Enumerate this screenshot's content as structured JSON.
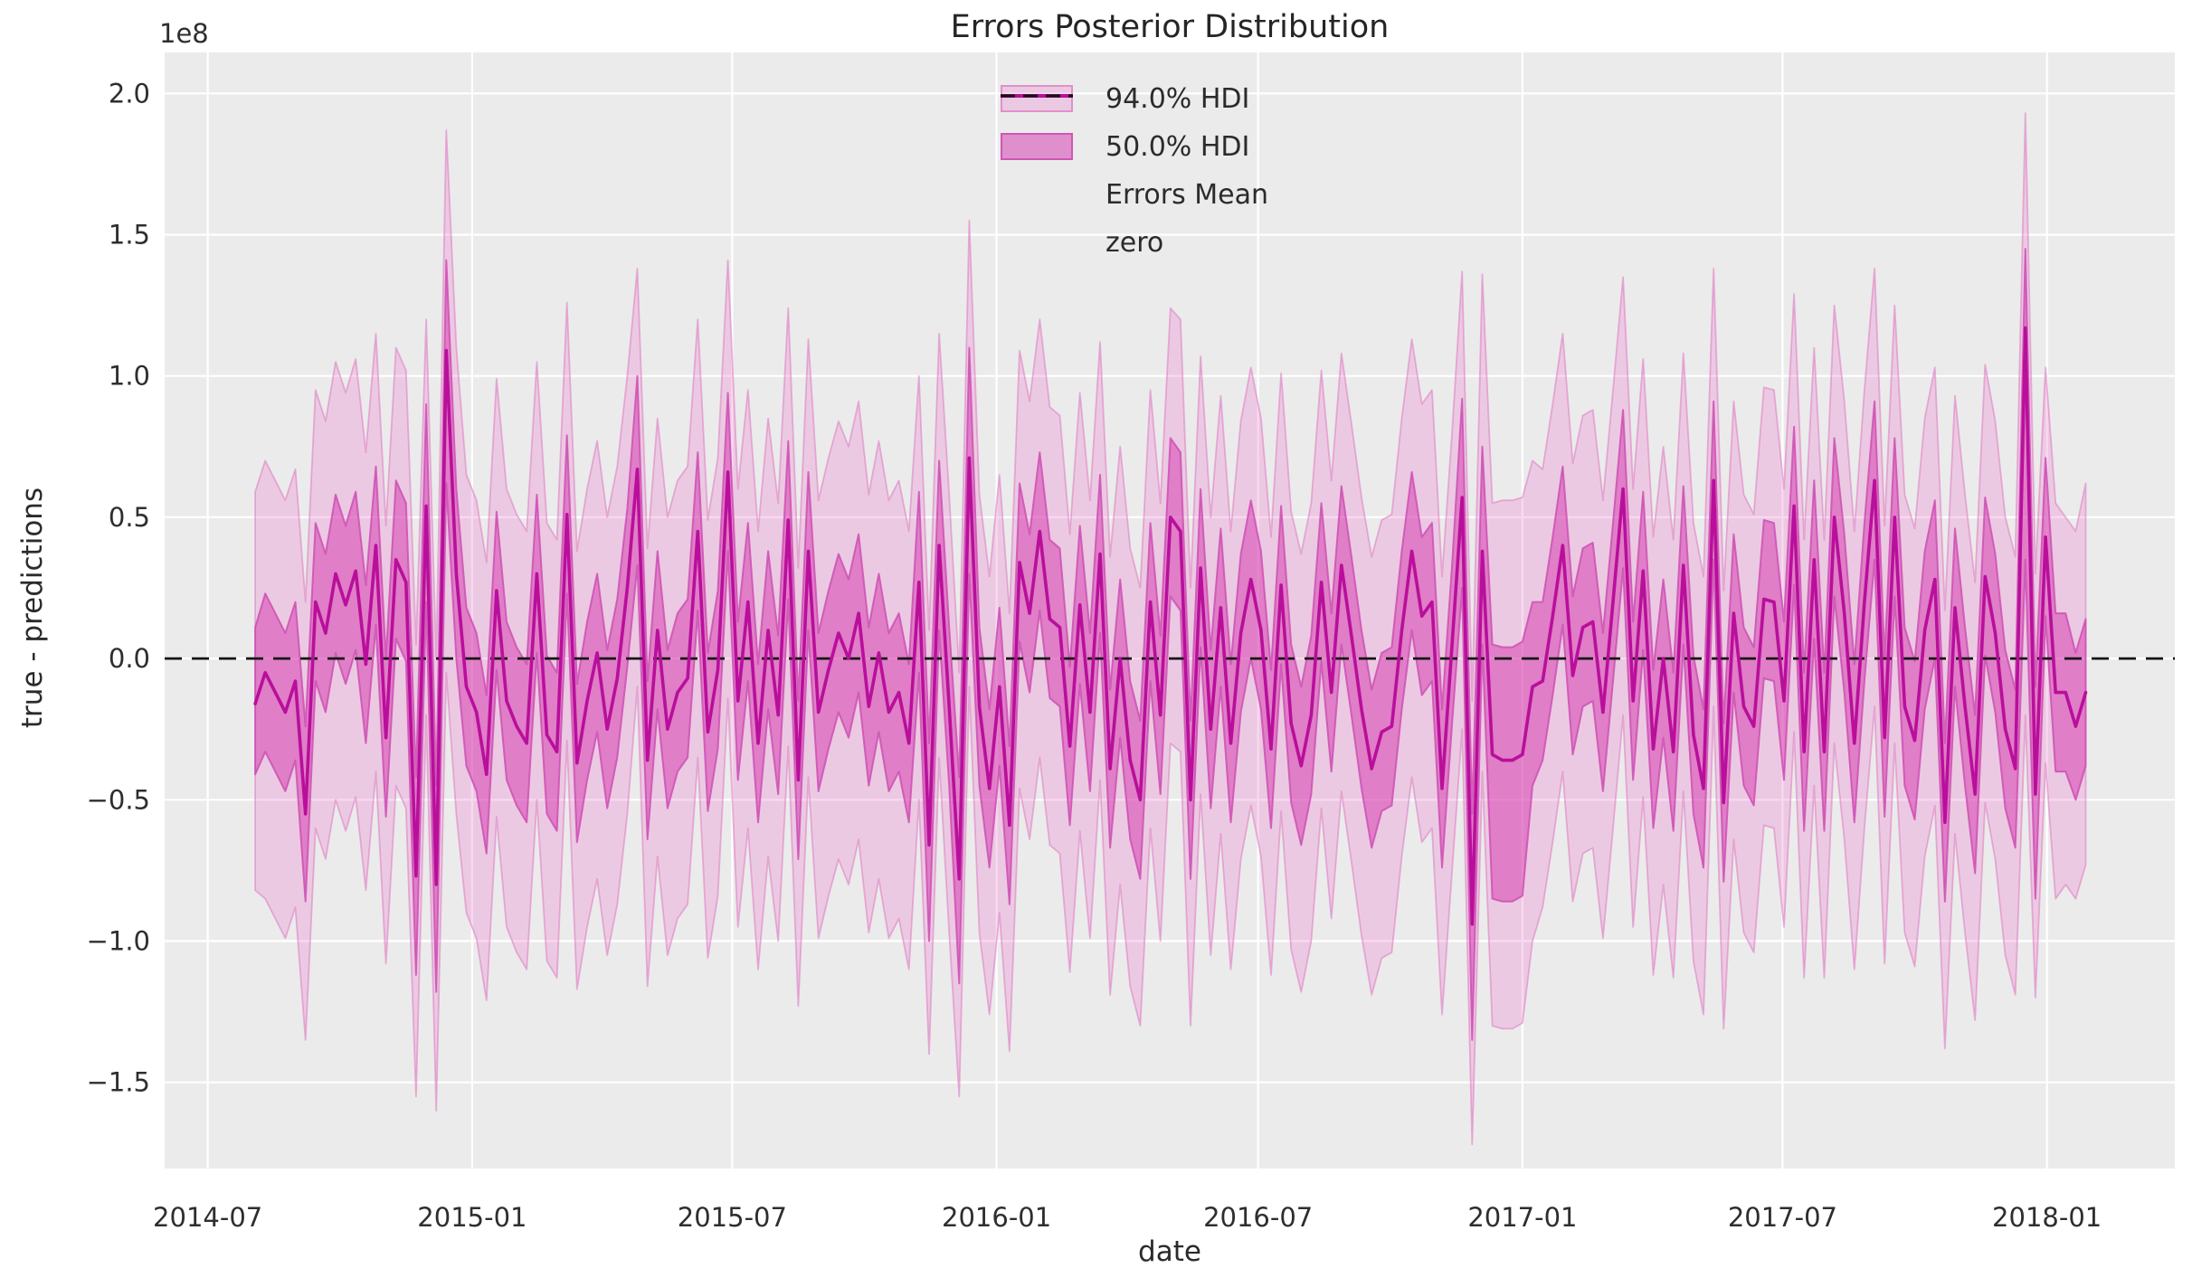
{
  "figure": {
    "title": "Errors Posterior Distribution",
    "background": "#ffffff",
    "plot_background": "#ebebeb",
    "gridline_color": "#ffffff"
  },
  "axes": {
    "xlabel": "date",
    "ylabel": "true - predictions",
    "y_offset_label": "1e8",
    "xticks": [
      {
        "label": "2014-07",
        "date": "2014-07-01"
      },
      {
        "label": "2015-01",
        "date": "2015-01-01"
      },
      {
        "label": "2015-07",
        "date": "2015-07-01"
      },
      {
        "label": "2016-01",
        "date": "2016-01-01"
      },
      {
        "label": "2016-07",
        "date": "2016-07-01"
      },
      {
        "label": "2017-01",
        "date": "2017-01-01"
      },
      {
        "label": "2017-07",
        "date": "2017-07-01"
      },
      {
        "label": "2018-01",
        "date": "2018-01-01"
      }
    ],
    "yticks": [
      {
        "label": "2.0",
        "value": 2.0
      },
      {
        "label": "1.5",
        "value": 1.5
      },
      {
        "label": "1.0",
        "value": 1.0
      },
      {
        "label": "0.5",
        "value": 0.5
      },
      {
        "label": "0.0",
        "value": 0.0
      },
      {
        "label": "−0.5",
        "value": -0.5
      },
      {
        "label": "−1.0",
        "value": -1.0
      },
      {
        "label": "−1.5",
        "value": -1.5
      }
    ]
  },
  "legend": {
    "items": [
      {
        "label": "94.0% HDI",
        "swatch": "patch",
        "fill": "rgba(239,99,198,0.25)",
        "edge": "rgba(222,130,197,0.8)"
      },
      {
        "label": "50.0% HDI",
        "swatch": "patch",
        "fill": "rgba(212,51,172,0.5)",
        "edge": "rgba(205,80,180,0.9)"
      },
      {
        "label": "Errors Mean",
        "swatch": "line",
        "color": "#b90f9b"
      },
      {
        "label": "zero",
        "swatch": "dashed-line",
        "color": "#141414"
      }
    ]
  },
  "chart_data": {
    "type": "line",
    "title": "Errors Posterior Distribution",
    "xlabel": "date",
    "ylabel": "true - predictions",
    "y_scale_factor": "1e8",
    "grid": true,
    "legend_position": "upper center",
    "x_start_date": "2014-08-03",
    "x_interval_days": 7,
    "xlim": [
      "2014-06-01",
      "2018-03-31"
    ],
    "ylim_1e8": [
      -1.805,
      2.145
    ],
    "mean_color": "#b90f9b",
    "hdi50_fill": "rgba(212,51,172,0.5)",
    "hdi94_fill": "rgba(239,99,198,0.25)",
    "hdi50_edge": "rgba(205,80,180,0.85)",
    "hdi94_edge": "rgba(222,130,197,0.6)",
    "zero_line": {
      "value": 0,
      "style": "dashed",
      "color": "#141414"
    },
    "mean_1e8": [
      -0.16,
      -0.05,
      -0.12,
      -0.19,
      -0.08,
      -0.55,
      0.2,
      0.09,
      0.3,
      0.19,
      0.31,
      -0.02,
      0.4,
      -0.28,
      0.35,
      0.27,
      -0.77,
      0.54,
      -0.8,
      1.09,
      0.3,
      -0.1,
      -0.19,
      -0.41,
      0.24,
      -0.15,
      -0.24,
      -0.3,
      0.3,
      -0.27,
      -0.33,
      0.51,
      -0.37,
      -0.15,
      0.02,
      -0.25,
      -0.07,
      0.25,
      0.67,
      -0.36,
      0.1,
      -0.25,
      -0.12,
      -0.07,
      0.45,
      -0.26,
      -0.04,
      0.66,
      -0.15,
      0.2,
      -0.3,
      0.1,
      -0.2,
      0.49,
      -0.43,
      0.38,
      -0.19,
      -0.04,
      0.09,
      0.0,
      0.16,
      -0.17,
      0.02,
      -0.19,
      -0.12,
      -0.3,
      0.27,
      -0.66,
      0.4,
      -0.17,
      -0.78,
      0.71,
      -0.17,
      -0.46,
      -0.1,
      -0.59,
      0.34,
      0.16,
      0.45,
      0.14,
      0.11,
      -0.31,
      0.19,
      -0.19,
      0.37,
      -0.39,
      0.0,
      -0.36,
      -0.5,
      0.2,
      -0.2,
      0.5,
      0.45,
      -0.5,
      0.32,
      -0.25,
      0.18,
      -0.3,
      0.09,
      0.28,
      0.1,
      -0.32,
      0.26,
      -0.23,
      -0.38,
      -0.2,
      0.27,
      -0.12,
      0.33,
      0.08,
      -0.18,
      -0.39,
      -0.26,
      -0.24,
      0.1,
      0.38,
      0.15,
      0.2,
      -0.46,
      0.05,
      0.57,
      -0.94,
      0.38,
      -0.34,
      -0.36,
      -0.36,
      -0.34,
      -0.1,
      -0.08,
      0.15,
      0.4,
      -0.06,
      0.11,
      0.13,
      -0.19,
      0.2,
      0.6,
      -0.15,
      0.31,
      -0.32,
      0.0,
      -0.33,
      0.33,
      -0.27,
      -0.46,
      0.63,
      -0.51,
      0.16,
      -0.17,
      -0.24,
      0.21,
      0.2,
      -0.15,
      0.54,
      -0.33,
      0.35,
      -0.33,
      0.5,
      0.16,
      -0.3,
      0.2,
      0.63,
      -0.28,
      0.5,
      -0.17,
      -0.29,
      0.1,
      0.28,
      -0.58,
      0.18,
      -0.17,
      -0.48,
      0.29,
      0.09,
      -0.25,
      -0.39,
      1.17,
      -0.48,
      0.43,
      -0.12,
      -0.12,
      -0.24,
      -0.12
    ],
    "hdi50_low_1e8": [
      -0.41,
      -0.33,
      -0.4,
      -0.47,
      -0.36,
      -0.86,
      -0.08,
      -0.19,
      0.02,
      -0.09,
      0.03,
      -0.3,
      0.12,
      -0.56,
      0.07,
      -0.01,
      -1.12,
      0.2,
      -1.18,
      0.62,
      0.0,
      -0.38,
      -0.47,
      -0.69,
      -0.04,
      -0.43,
      -0.52,
      -0.58,
      0.02,
      -0.55,
      -0.61,
      0.23,
      -0.65,
      -0.43,
      -0.26,
      -0.53,
      -0.35,
      -0.03,
      0.33,
      -0.64,
      -0.18,
      -0.53,
      -0.4,
      -0.35,
      0.17,
      -0.54,
      -0.32,
      0.38,
      -0.43,
      -0.08,
      -0.58,
      -0.18,
      -0.48,
      0.21,
      -0.71,
      0.1,
      -0.47,
      -0.32,
      -0.19,
      -0.28,
      -0.12,
      -0.45,
      -0.26,
      -0.47,
      -0.4,
      -0.58,
      -0.05,
      -1.0,
      0.1,
      -0.45,
      -1.15,
      0.3,
      -0.45,
      -0.74,
      -0.38,
      -0.87,
      0.06,
      -0.12,
      0.17,
      -0.14,
      -0.17,
      -0.59,
      -0.09,
      -0.47,
      0.09,
      -0.67,
      -0.28,
      -0.64,
      -0.78,
      -0.08,
      -0.48,
      0.22,
      0.17,
      -0.78,
      0.04,
      -0.53,
      -0.1,
      -0.58,
      -0.19,
      0.0,
      -0.18,
      -0.6,
      -0.02,
      -0.51,
      -0.66,
      -0.48,
      -0.01,
      -0.4,
      0.05,
      -0.2,
      -0.46,
      -0.67,
      -0.54,
      -0.52,
      -0.18,
      0.1,
      -0.13,
      -0.08,
      -0.74,
      -0.23,
      0.25,
      -1.35,
      0.05,
      -0.85,
      -0.86,
      -0.86,
      -0.84,
      -0.45,
      -0.36,
      -0.13,
      0.12,
      -0.34,
      -0.17,
      -0.15,
      -0.47,
      -0.08,
      0.32,
      -0.43,
      0.03,
      -0.6,
      -0.28,
      -0.61,
      0.05,
      -0.55,
      -0.74,
      0.35,
      -0.79,
      -0.12,
      -0.45,
      -0.52,
      -0.07,
      -0.08,
      -0.43,
      0.26,
      -0.61,
      0.07,
      -0.61,
      0.22,
      -0.12,
      -0.58,
      -0.08,
      0.35,
      -0.56,
      0.22,
      -0.45,
      -0.57,
      -0.18,
      0.0,
      -0.86,
      -0.1,
      -0.45,
      -0.76,
      0.01,
      -0.19,
      -0.53,
      -0.67,
      0.35,
      -0.85,
      0.15,
      -0.4,
      -0.4,
      -0.5,
      -0.38
    ],
    "hdi50_high_1e8": [
      0.11,
      0.23,
      0.16,
      0.09,
      0.2,
      -0.24,
      0.48,
      0.37,
      0.58,
      0.47,
      0.59,
      0.26,
      0.68,
      0.0,
      0.63,
      0.55,
      -0.42,
      0.9,
      -0.45,
      1.41,
      0.6,
      0.18,
      0.09,
      -0.13,
      0.52,
      0.13,
      0.04,
      -0.02,
      0.58,
      0.01,
      -0.05,
      0.79,
      -0.09,
      0.13,
      0.3,
      0.03,
      0.21,
      0.53,
      1.0,
      -0.08,
      0.38,
      0.03,
      0.16,
      0.21,
      0.73,
      0.02,
      0.24,
      0.94,
      0.13,
      0.48,
      -0.02,
      0.38,
      0.08,
      0.77,
      -0.15,
      0.66,
      0.09,
      0.24,
      0.37,
      0.28,
      0.44,
      0.11,
      0.3,
      0.09,
      0.16,
      -0.02,
      0.59,
      -0.3,
      0.7,
      0.11,
      -0.42,
      1.1,
      0.11,
      -0.18,
      0.18,
      -0.31,
      0.62,
      0.44,
      0.73,
      0.42,
      0.39,
      -0.03,
      0.47,
      0.09,
      0.65,
      -0.11,
      0.28,
      -0.08,
      -0.22,
      0.48,
      0.08,
      0.78,
      0.73,
      -0.22,
      0.6,
      0.03,
      0.46,
      -0.02,
      0.37,
      0.56,
      0.38,
      -0.04,
      0.54,
      0.05,
      -0.1,
      0.08,
      0.55,
      0.16,
      0.61,
      0.36,
      0.1,
      -0.11,
      0.02,
      0.04,
      0.38,
      0.66,
      0.43,
      0.48,
      -0.18,
      0.33,
      0.92,
      -0.55,
      0.75,
      0.05,
      0.04,
      0.04,
      0.06,
      0.2,
      0.2,
      0.43,
      0.68,
      0.22,
      0.39,
      0.41,
      0.09,
      0.48,
      0.88,
      0.13,
      0.59,
      -0.04,
      0.28,
      -0.05,
      0.61,
      0.01,
      -0.18,
      0.91,
      -0.23,
      0.44,
      0.11,
      0.04,
      0.49,
      0.48,
      0.13,
      0.82,
      -0.05,
      0.63,
      -0.05,
      0.78,
      0.44,
      -0.02,
      0.48,
      0.91,
      0.0,
      0.78,
      0.11,
      -0.01,
      0.38,
      0.56,
      -0.3,
      0.46,
      0.11,
      -0.2,
      0.57,
      0.37,
      0.03,
      -0.11,
      1.45,
      -0.1,
      0.71,
      0.16,
      0.16,
      0.02,
      0.14
    ],
    "hdi94_low_1e8": [
      -0.82,
      -0.85,
      -0.92,
      -0.99,
      -0.88,
      -1.35,
      -0.6,
      -0.71,
      -0.5,
      -0.61,
      -0.49,
      -0.82,
      -0.4,
      -1.08,
      -0.45,
      -0.53,
      -1.55,
      -0.2,
      -1.6,
      -0.05,
      -0.55,
      -0.9,
      -0.99,
      -1.21,
      -0.56,
      -0.95,
      -1.04,
      -1.1,
      -0.5,
      -1.07,
      -1.13,
      -0.29,
      -1.17,
      -0.95,
      -0.78,
      -1.05,
      -0.87,
      -0.55,
      -0.1,
      -1.16,
      -0.7,
      -1.05,
      -0.92,
      -0.87,
      -0.35,
      -1.06,
      -0.84,
      -0.14,
      -0.95,
      -0.6,
      -1.1,
      -0.7,
      -1.0,
      -0.31,
      -1.23,
      -0.42,
      -0.99,
      -0.84,
      -0.71,
      -0.8,
      -0.64,
      -0.97,
      -0.78,
      -0.99,
      -0.92,
      -1.1,
      -0.5,
      -1.4,
      -0.35,
      -0.97,
      -1.55,
      -0.1,
      -0.97,
      -1.26,
      -0.9,
      -1.39,
      -0.46,
      -0.64,
      -0.35,
      -0.66,
      -0.69,
      -1.11,
      -0.61,
      -0.99,
      -0.43,
      -1.19,
      -0.8,
      -1.16,
      -1.3,
      -0.6,
      -1.0,
      -0.3,
      -0.33,
      -1.3,
      -0.48,
      -1.05,
      -0.62,
      -1.1,
      -0.71,
      -0.52,
      -0.7,
      -1.12,
      -0.54,
      -1.03,
      -1.18,
      -1.0,
      -0.53,
      -0.92,
      -0.47,
      -0.72,
      -0.98,
      -1.19,
      -1.06,
      -1.04,
      -0.7,
      -0.42,
      -0.65,
      -0.6,
      -1.26,
      -0.75,
      -0.25,
      -1.72,
      -0.4,
      -1.3,
      -1.31,
      -1.31,
      -1.29,
      -1.0,
      -0.88,
      -0.65,
      -0.4,
      -0.86,
      -0.69,
      -0.67,
      -0.99,
      -0.6,
      -0.2,
      -0.95,
      -0.49,
      -1.12,
      -0.8,
      -1.13,
      -0.47,
      -1.07,
      -1.26,
      -0.17,
      -1.31,
      -0.64,
      -0.97,
      -1.04,
      -0.59,
      -0.6,
      -0.95,
      -0.26,
      -1.13,
      -0.45,
      -1.13,
      -0.3,
      -0.64,
      -1.1,
      -0.6,
      -0.17,
      -1.08,
      -0.3,
      -0.97,
      -1.09,
      -0.7,
      -0.52,
      -1.38,
      -0.62,
      -0.97,
      -1.28,
      -0.51,
      -0.71,
      -1.05,
      -1.19,
      -0.2,
      -1.2,
      -0.37,
      -0.85,
      -0.8,
      -0.85,
      -0.73
    ],
    "hdi94_high_1e8": [
      0.59,
      0.7,
      0.63,
      0.56,
      0.67,
      0.2,
      0.95,
      0.84,
      1.05,
      0.94,
      1.06,
      0.73,
      1.15,
      0.47,
      1.1,
      1.02,
      0.05,
      1.2,
      0.0,
      1.87,
      1.1,
      0.65,
      0.56,
      0.34,
      0.99,
      0.6,
      0.51,
      0.45,
      1.05,
      0.48,
      0.42,
      1.26,
      0.38,
      0.6,
      0.77,
      0.5,
      0.68,
      1.0,
      1.38,
      0.39,
      0.85,
      0.5,
      0.63,
      0.68,
      1.2,
      0.49,
      0.71,
      1.41,
      0.6,
      0.95,
      0.45,
      0.85,
      0.55,
      1.24,
      0.32,
      1.13,
      0.56,
      0.71,
      0.84,
      0.75,
      0.91,
      0.58,
      0.77,
      0.56,
      0.63,
      0.45,
      1.0,
      0.1,
      1.15,
      0.58,
      -0.05,
      1.55,
      0.58,
      0.29,
      0.65,
      0.16,
      1.09,
      0.91,
      1.2,
      0.89,
      0.86,
      0.44,
      0.94,
      0.56,
      1.12,
      0.36,
      0.75,
      0.39,
      0.25,
      0.95,
      0.55,
      1.24,
      1.2,
      0.25,
      1.07,
      0.5,
      0.93,
      0.45,
      0.84,
      1.03,
      0.85,
      0.43,
      1.01,
      0.52,
      0.37,
      0.55,
      1.02,
      0.63,
      1.08,
      0.83,
      0.57,
      0.36,
      0.49,
      0.51,
      0.85,
      1.13,
      0.9,
      0.95,
      0.29,
      0.8,
      1.37,
      -0.15,
      1.36,
      0.55,
      0.56,
      0.56,
      0.57,
      0.7,
      0.67,
      0.9,
      1.15,
      0.69,
      0.86,
      0.88,
      0.56,
      0.95,
      1.35,
      0.6,
      1.06,
      0.43,
      0.75,
      0.42,
      1.08,
      0.48,
      0.29,
      1.38,
      0.24,
      0.91,
      0.58,
      0.51,
      0.96,
      0.95,
      0.6,
      1.29,
      0.42,
      1.1,
      0.42,
      1.25,
      0.91,
      0.45,
      0.95,
      1.38,
      0.47,
      1.25,
      0.58,
      0.46,
      0.85,
      1.03,
      0.17,
      0.93,
      0.58,
      0.27,
      1.04,
      0.84,
      0.5,
      0.36,
      1.93,
      0.3,
      1.03,
      0.55,
      0.5,
      0.45,
      0.62
    ]
  }
}
